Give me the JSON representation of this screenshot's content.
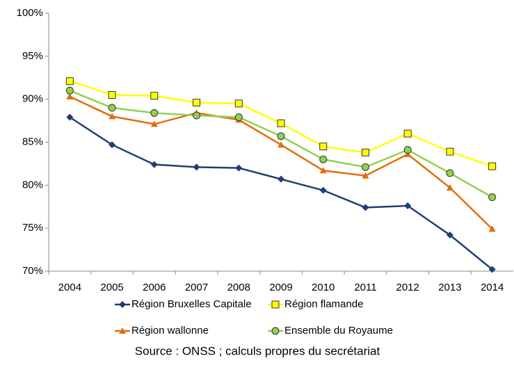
{
  "chart_data": {
    "type": "line",
    "categories": [
      "2004",
      "2005",
      "2006",
      "2007",
      "2008",
      "2009",
      "2010",
      "2011",
      "2012",
      "2013",
      "2014"
    ],
    "series": [
      {
        "name": "Région Bruxelles Capitale",
        "color": "#1f3f74",
        "marker": "diamond",
        "values": [
          87.9,
          84.7,
          82.4,
          82.1,
          82.0,
          80.7,
          79.4,
          77.4,
          77.6,
          74.2,
          70.2
        ]
      },
      {
        "name": "Région flamande",
        "color": "#ffff00",
        "marker": "square",
        "values": [
          92.1,
          90.5,
          90.4,
          89.6,
          89.5,
          87.2,
          84.5,
          83.8,
          86.0,
          83.9,
          82.2
        ]
      },
      {
        "name": "Région wallonne",
        "color": "#e46c0a",
        "marker": "triangle",
        "values": [
          90.3,
          88.0,
          87.1,
          88.4,
          87.6,
          84.7,
          81.7,
          81.1,
          83.6,
          79.7,
          74.9
        ]
      },
      {
        "name": "Ensemble du Royaume",
        "color": "#92d050",
        "marker": "circle",
        "values": [
          91.0,
          89.0,
          88.4,
          88.1,
          87.9,
          85.7,
          83.0,
          82.1,
          84.1,
          81.4,
          78.6
        ]
      }
    ],
    "ylim": [
      70,
      100
    ],
    "yticks": [
      {
        "value": 70,
        "label": "70%"
      },
      {
        "value": 75,
        "label": "75%"
      },
      {
        "value": 80,
        "label": "80%"
      },
      {
        "value": 85,
        "label": "85%"
      },
      {
        "value": 90,
        "label": "90%"
      },
      {
        "value": 95,
        "label": "95%"
      },
      {
        "value": 100,
        "label": "100%"
      }
    ],
    "grid": false,
    "source": "Source : ONSS ; calculs propres du secrétariat"
  }
}
